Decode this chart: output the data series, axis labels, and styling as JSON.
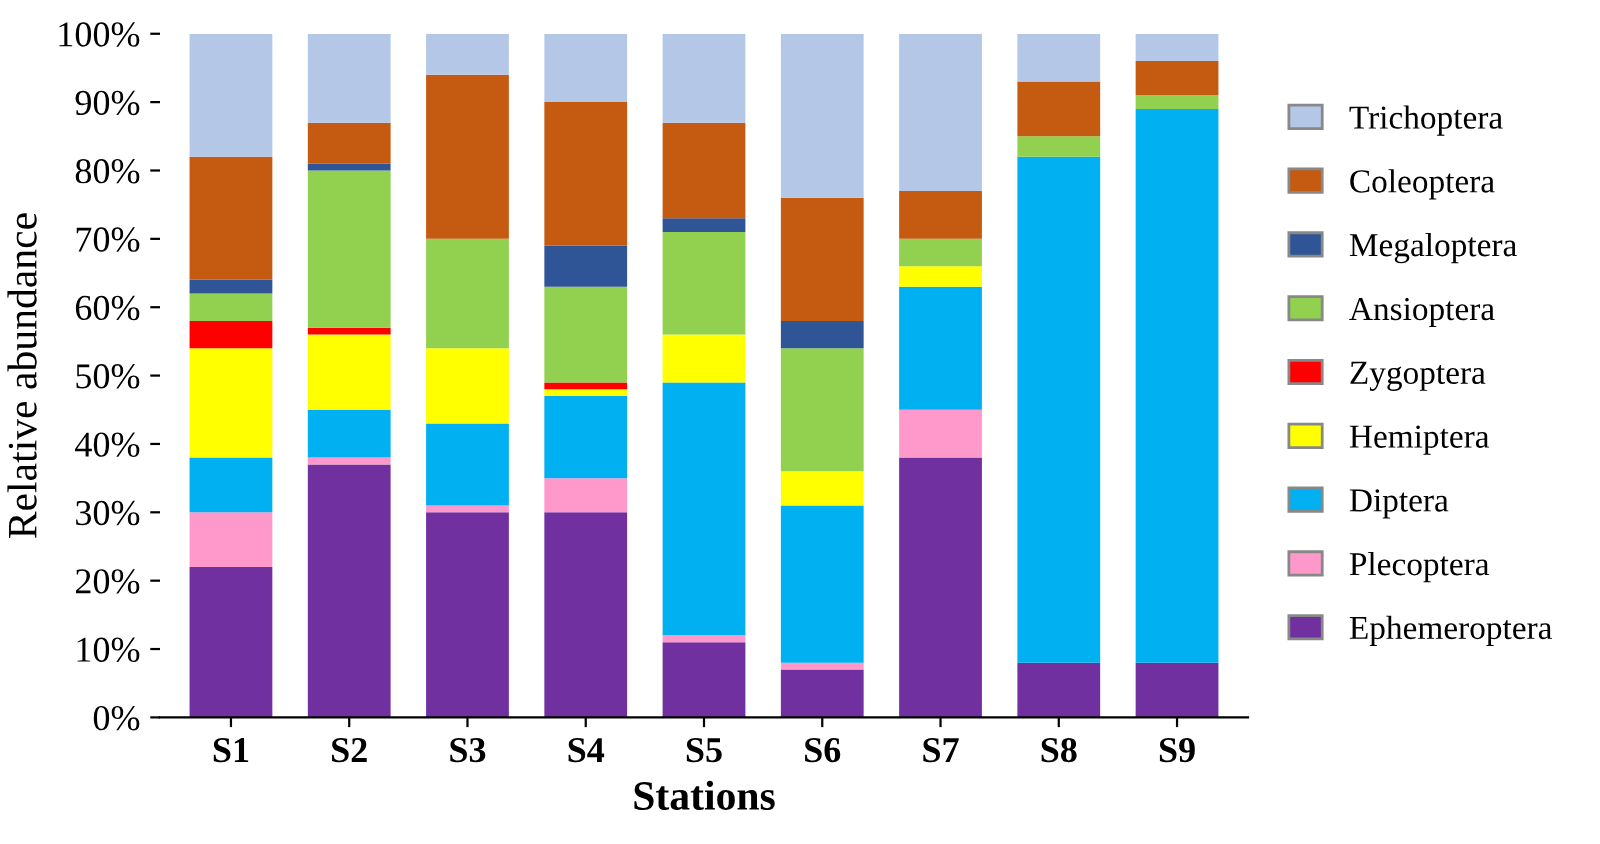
{
  "chart_data": {
    "type": "bar",
    "stacked": true,
    "xlabel": "Stations",
    "ylabel": "Relative abundance",
    "categories": [
      "S1",
      "S2",
      "S3",
      "S4",
      "S5",
      "S6",
      "S7",
      "S8",
      "S9"
    ],
    "series": [
      {
        "name": "Ephemeroptera",
        "color": "#7030a0",
        "values": [
          22,
          37,
          30,
          30,
          11,
          7,
          38,
          8,
          8
        ]
      },
      {
        "name": "Plecoptera",
        "color": "#ff99cc",
        "values": [
          8,
          1,
          1,
          5,
          1,
          1,
          7,
          0,
          0
        ]
      },
      {
        "name": "Diptera",
        "color": "#00b0f0",
        "values": [
          8,
          7,
          12,
          12,
          37,
          23,
          18,
          74,
          81
        ]
      },
      {
        "name": "Hemiptera",
        "color": "#ffff00",
        "values": [
          16,
          11,
          11,
          1,
          7,
          5,
          3,
          0,
          0
        ]
      },
      {
        "name": "Zygoptera",
        "color": "#ff0000",
        "values": [
          4,
          1,
          0,
          1,
          0,
          0,
          0,
          0,
          0
        ]
      },
      {
        "name": "Ansioptera",
        "color": "#92d050",
        "values": [
          4,
          23,
          16,
          14,
          15,
          18,
          4,
          3,
          2
        ]
      },
      {
        "name": "Megaloptera",
        "color": "#2f5597",
        "values": [
          2,
          1,
          0,
          6,
          2,
          4,
          0,
          0,
          0
        ]
      },
      {
        "name": "Coleoptera",
        "color": "#c55a11",
        "values": [
          18,
          6,
          24,
          21,
          14,
          18,
          7,
          8,
          5
        ]
      },
      {
        "name": "Trichoptera",
        "color": "#b4c7e7",
        "values": [
          18,
          13,
          6,
          10,
          13,
          24,
          23,
          7,
          4
        ]
      }
    ],
    "ylim": [
      0,
      100
    ],
    "yticks": [
      {
        "value": 0,
        "label": "0%"
      },
      {
        "value": 10,
        "label": "10%"
      },
      {
        "value": 20,
        "label": "20%"
      },
      {
        "value": 30,
        "label": "30%"
      },
      {
        "value": 40,
        "label": "40%"
      },
      {
        "value": 50,
        "label": "50%"
      },
      {
        "value": 60,
        "label": "60%"
      },
      {
        "value": 70,
        "label": "70%"
      },
      {
        "value": 80,
        "label": "80%"
      },
      {
        "value": 90,
        "label": "90%"
      },
      {
        "value": 100,
        "label": "100%"
      }
    ],
    "legend": "right",
    "grid": false
  }
}
